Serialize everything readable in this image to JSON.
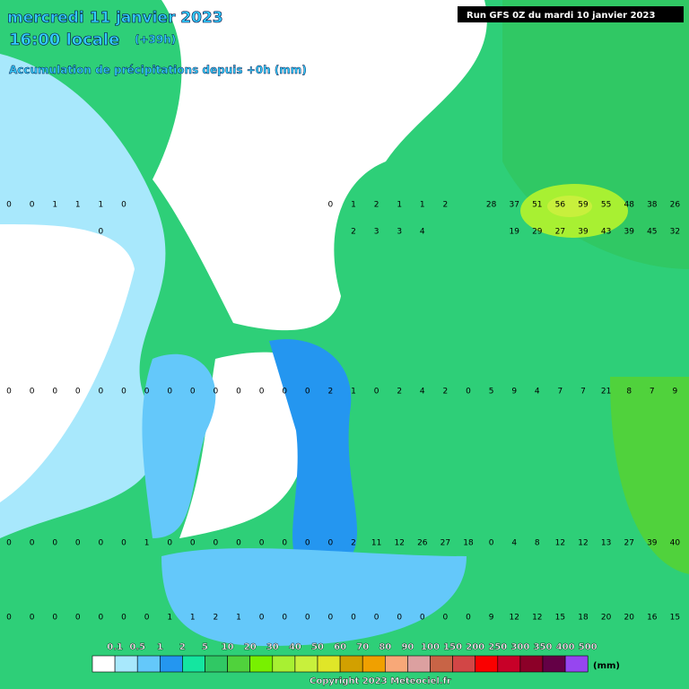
{
  "header": {
    "date": "mercredi 11 janvier 2023",
    "time": "16:00 locale",
    "lead": "(+39h)",
    "product": "Accumulation de précipitations depuis +0h (mm)",
    "run": "Run GFS 0Z du mardi 10 janvier 2023"
  },
  "map_values": [
    [
      0,
      0,
      1,
      1,
      1,
      0,
      null,
      null,
      null,
      null,
      null,
      null,
      null,
      null,
      0,
      1,
      2,
      1,
      1,
      2,
      null,
      28,
      37,
      51,
      56,
      59,
      55,
      48,
      38,
      26
    ],
    [
      null,
      null,
      null,
      null,
      0,
      null,
      null,
      null,
      null,
      null,
      null,
      null,
      null,
      null,
      null,
      2,
      3,
      3,
      4,
      null,
      null,
      null,
      19,
      29,
      27,
      39,
      43,
      39,
      45,
      32
    ],
    [
      0,
      0,
      0,
      0,
      0,
      0,
      0,
      0,
      0,
      0,
      0,
      0,
      0,
      0,
      2,
      1,
      0,
      2,
      4,
      2,
      0,
      5,
      9,
      4,
      7,
      7,
      21,
      8,
      7,
      9
    ],
    [
      0,
      0,
      0,
      0,
      0,
      0,
      1,
      0,
      0,
      0,
      0,
      0,
      0,
      0,
      0,
      2,
      11,
      12,
      26,
      27,
      18,
      0,
      4,
      8,
      12,
      12,
      13,
      27,
      39,
      40
    ],
    [
      0,
      0,
      0,
      0,
      0,
      0,
      0,
      1,
      1,
      2,
      1,
      0,
      0,
      0,
      0,
      0,
      0,
      0,
      0,
      0,
      0,
      9,
      12,
      12,
      15,
      18,
      20,
      20,
      16,
      15
    ]
  ],
  "legend": {
    "labels": [
      0.1,
      0.5,
      1,
      2,
      5,
      10,
      20,
      30,
      40,
      50,
      60,
      70,
      80,
      90,
      100,
      150,
      200,
      250,
      300,
      350,
      400,
      500
    ],
    "colors": [
      "#ffffff",
      "#a8e8fc",
      "#64c8fa",
      "#2496f0",
      "#14e6a0",
      "#30c864",
      "#50d23c",
      "#78f000",
      "#a8f032",
      "#c8f03c",
      "#e0e628",
      "#d2a000",
      "#f0a000",
      "#f8a878",
      "#dca0a0",
      "#c86446",
      "#d24646",
      "#fa0000",
      "#c80028",
      "#8c0028",
      "#640046",
      "#9646f0"
    ],
    "unit": "(mm)"
  },
  "footer": {
    "copyright": "Copyright 2023 Meteociel.fr"
  }
}
